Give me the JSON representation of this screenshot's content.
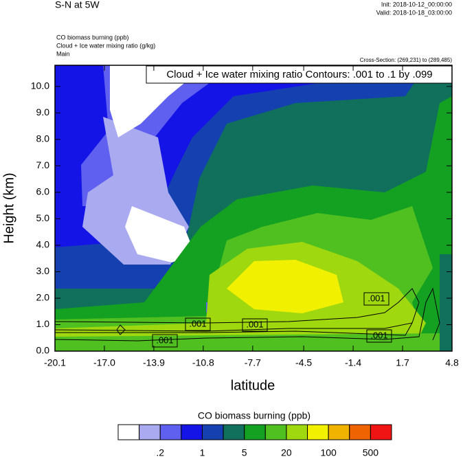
{
  "chart_data": {
    "type": "contour",
    "title": "S-N at 5W",
    "init": "Init: 2018-10-12_00:00:00",
    "valid": "Valid: 2018-10-18_03:00:00",
    "field_lines": [
      "CO biomass burning   (ppb)",
      "Cloud + Ice water mixing ratio   (g/kg)",
      "Main"
    ],
    "cross_section": "Cross-Section: (269,231) to (289,485)",
    "contour_info": "Cloud + Ice water mixing ratio Contours: .001 to .1 by .099",
    "contour_labels": [
      ".001",
      ".001",
      ".001",
      ".001",
      ".001"
    ],
    "xlabel": "latitude",
    "ylabel": "Height (km)",
    "xlim": [
      -20.1,
      4.8
    ],
    "xticks": [
      -20.1,
      {
        "value": -17,
        "label": "-17.0"
      },
      -13.9,
      -10.8,
      -7.7,
      -4.5,
      -1.4,
      1.7,
      4.8
    ],
    "ylim": [
      0,
      10.8
    ],
    "yticks": [
      {
        "value": 0,
        "label": "0.0"
      },
      {
        "value": 1,
        "label": "1.0"
      },
      {
        "value": 2,
        "label": "2.0"
      },
      {
        "value": 3,
        "label": "3.0"
      },
      {
        "value": 4,
        "label": "4.0"
      },
      {
        "value": 5,
        "label": "5.0"
      },
      {
        "value": 6,
        "label": "6.0"
      },
      {
        "value": 7,
        "label": "7.0"
      },
      {
        "value": 8,
        "label": "8.0"
      },
      {
        "value": 9,
        "label": "9.0"
      },
      {
        "value": 10,
        "label": "10.0"
      }
    ],
    "colorbar": {
      "title": "CO biomass burning  (ppb)",
      "colors": [
        "#ffffff",
        "#aaaaf0",
        "#6060f0",
        "#1414e6",
        "#1440b0",
        "#10705c",
        "#14a020",
        "#50c020",
        "#a0d810",
        "#f0f000",
        "#f0b400",
        "#f06400",
        "#f01414"
      ],
      "ticks": [
        {
          "value": 0.2,
          "label": ".2"
        },
        1,
        5,
        20,
        100,
        500
      ]
    }
  }
}
